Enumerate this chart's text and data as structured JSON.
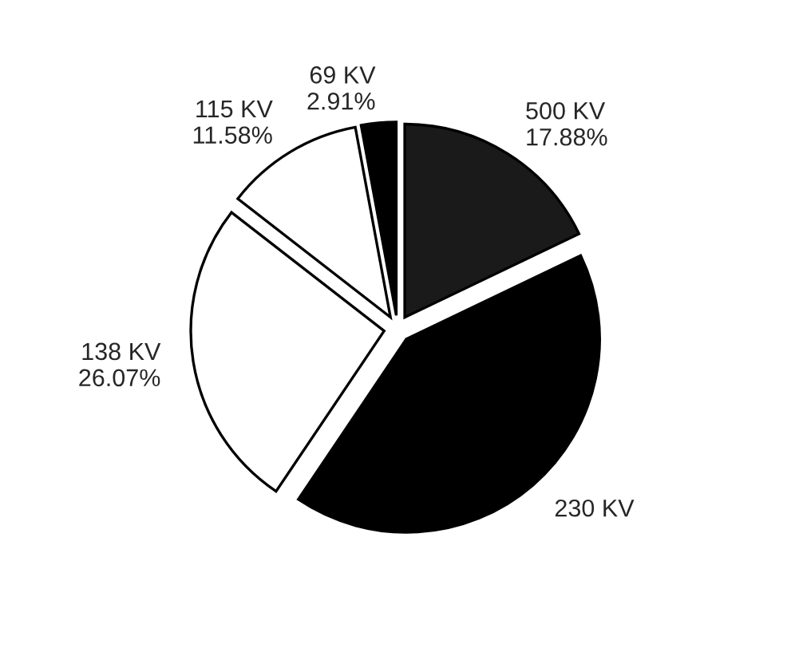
{
  "chart_data": {
    "type": "pie",
    "categories": [
      "500 KV",
      "230 KV",
      "138 KV",
      "115 KV",
      "69 KV"
    ],
    "values": [
      17.88,
      41.56,
      26.07,
      11.58,
      2.91
    ],
    "value_labels": [
      "17.88%",
      null,
      "26.07%",
      "11.58%",
      "2.91%"
    ],
    "colors": [
      "#1a1a1a",
      "#000000",
      "#ffffff",
      "#ffffff",
      "#000000"
    ]
  }
}
